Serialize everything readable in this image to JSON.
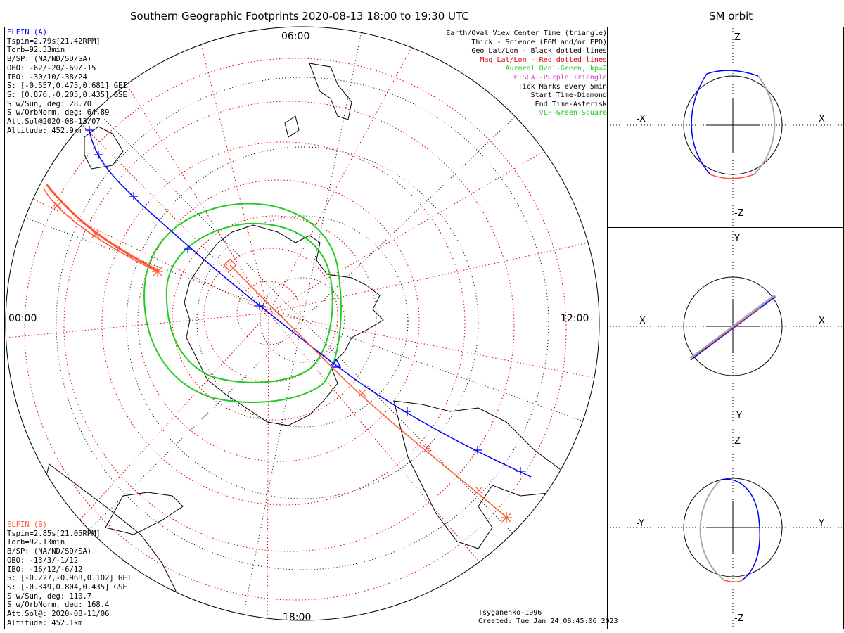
{
  "header": {
    "main_title": "Southern Geographic Footprints 2020-08-13 18:00 to 19:30 UTC",
    "sm_title": "SM orbit"
  },
  "elfin_a": {
    "name": "ELFIN (A)",
    "color": "#0000ff",
    "lines": [
      "Tspin=2.79s[21.42RPM]",
      "Torb=92.33min",
      "B/SP: (NA/ND/SD/SA)",
      "OBO: -62/-20/-69/-15",
      "IBO: -30/10/-38/24",
      "S: [-0.557,0.475,0.681] GEI",
      "S: [0.876,-0.205,0.435] GSE",
      "S w/Sun, deg: 28.70",
      "S w/OrbNorm, deg: 64.89",
      "Att.Sol@2020-08-13/07",
      "Altitude: 452.9km"
    ]
  },
  "elfin_b": {
    "name": "ELFIN (B)",
    "color": "#ff5533",
    "lines": [
      "Tspin=2.85s[21.05RPM]",
      "Torb=92.13min",
      "B/SP: (NA/ND/SD/SA)",
      "OBO: -13/3/-1/12",
      "IBO: -16/12/-6/12",
      "S: [-0.227,-0.968,0.102] GEI",
      "S: [-0.349,0.804,0.435] GSE",
      "S w/Sun, deg: 110.7",
      "S w/OrbNorm, deg: 168.4",
      "Att.Sol@: 2020-08-11/06",
      "Altitude: 452.1km"
    ]
  },
  "legend": [
    {
      "text": "Earth/Oval View Center Time (triangle)",
      "color": "#000000"
    },
    {
      "text": "Thick - Science (FGM and/or EPD)",
      "color": "#000000"
    },
    {
      "text": "Geo Lat/Lon - Black dotted lines",
      "color": "#000000"
    },
    {
      "text": "Mag Lat/Lon - Red dotted lines",
      "color": "#dd0000"
    },
    {
      "text": "Auroral Oval-Green, kp=2",
      "color": "#22cc22"
    },
    {
      "text": "EISCAT-Purple Triangle",
      "color": "#cc44cc"
    },
    {
      "text": "Tick Marks every 5min",
      "color": "#000000"
    },
    {
      "text": "Start Time-Diamond",
      "color": "#000000"
    },
    {
      "text": "End Time-Asterisk",
      "color": "#000000"
    },
    {
      "text": "VLF-Green Square",
      "color": "#22cc22"
    }
  ],
  "mlt_labels": {
    "top": "06:00",
    "left": "00:00",
    "right": "12:00",
    "bottom": "18:00"
  },
  "credit": {
    "model": "Tsyganenko-1996",
    "created": "Created: Tue Jan 24 08:45:06 2023"
  },
  "sm_panels": [
    {
      "top": "Z",
      "bottom": "-Z",
      "left": "-X",
      "right": "X"
    },
    {
      "top": "Y",
      "bottom": "-Y",
      "left": "-X",
      "right": "X"
    },
    {
      "top": "Z",
      "bottom": "-Z",
      "left": "-Y",
      "right": "Y"
    }
  ],
  "colors": {
    "elfin_a": "#0000ff",
    "elfin_b": "#ff5533",
    "oval": "#22cc22",
    "mag_grid": "#dd0000",
    "geo_grid": "#000000"
  }
}
